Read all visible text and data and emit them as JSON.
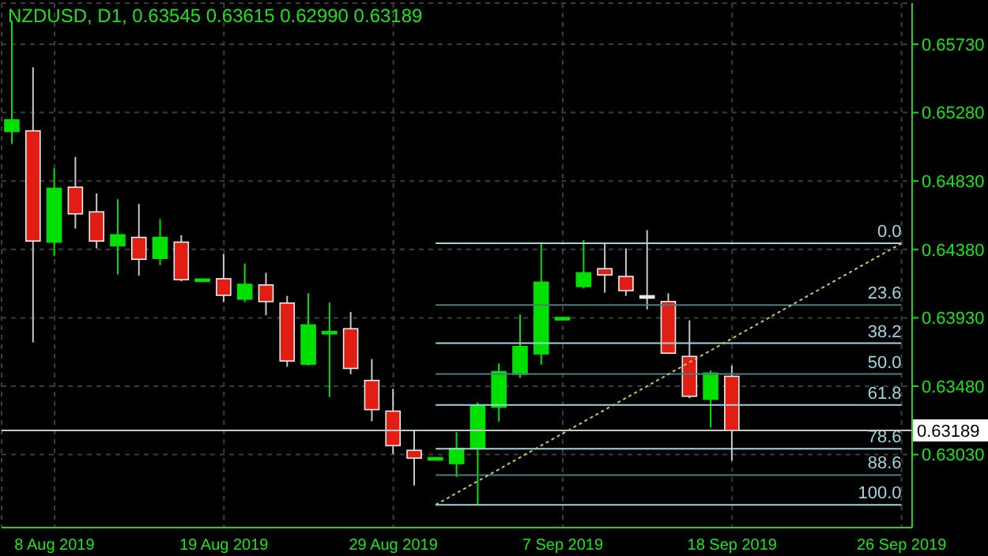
{
  "chart_data": {
    "type": "candlestick",
    "title": "NZDUSD, D1, 0.63545 0.63615 0.62990 0.63189",
    "categories": [
      null,
      null,
      "8 Aug 2019",
      null,
      null,
      null,
      null,
      null,
      null,
      null,
      "19 Aug 2019",
      null,
      null,
      null,
      null,
      null,
      null,
      null,
      "29 Aug 2019",
      null,
      null,
      null,
      null,
      null,
      null,
      null,
      "7 Sep 2019",
      null,
      null,
      null,
      null,
      null,
      null,
      null,
      "18 Sep 2019",
      null,
      null,
      null,
      null,
      null,
      null,
      null,
      "26 Sep 2019"
    ],
    "ohlc": [
      [
        0.65156,
        0.65885,
        0.65074,
        0.65232
      ],
      [
        0.6516,
        0.65578,
        0.63769,
        0.64435
      ],
      [
        0.64428,
        0.64913,
        0.64336,
        0.64782
      ],
      [
        0.64789,
        0.64988,
        0.64517,
        0.64614
      ],
      [
        0.64627,
        0.64748,
        0.64387,
        0.64435
      ],
      [
        0.64404,
        0.6471,
        0.64215,
        0.64476
      ],
      [
        0.64459,
        0.64679,
        0.64208,
        0.64315
      ],
      [
        0.64321,
        0.64579,
        0.64277,
        0.64459
      ],
      [
        0.64428,
        0.64473,
        0.64171,
        0.64181
      ],
      [
        0.64175,
        0.64185,
        0.64175,
        0.64185
      ],
      [
        0.64187,
        0.64349,
        0.64033,
        0.64078
      ],
      [
        0.64053,
        0.64287,
        0.64033,
        0.6415
      ],
      [
        0.64146,
        0.64226,
        0.63947,
        0.64037
      ],
      [
        0.64027,
        0.64074,
        0.63608,
        0.63646
      ],
      [
        0.63625,
        0.64092,
        0.63615,
        0.63883
      ],
      [
        0.6383,
        0.6403,
        0.63409,
        0.6384
      ],
      [
        0.63858,
        0.63968,
        0.63559,
        0.63597
      ],
      [
        0.63518,
        0.63659,
        0.6325,
        0.63326
      ],
      [
        0.63316,
        0.63463,
        0.63034,
        0.63089
      ],
      [
        0.63058,
        0.63195,
        0.62827,
        0.63007
      ],
      [
        0.63002,
        0.6301,
        0.63002,
        0.6301
      ],
      [
        0.62971,
        0.63178,
        0.62883,
        0.63071
      ],
      [
        0.63074,
        0.63373,
        0.627,
        0.6335
      ],
      [
        0.63342,
        0.63631,
        0.63247,
        0.63576
      ],
      [
        0.63559,
        0.63951,
        0.63535,
        0.63741
      ],
      [
        0.63693,
        0.64428,
        0.63621,
        0.64164
      ],
      [
        0.6392,
        0.63932,
        0.6392,
        0.63932
      ],
      [
        0.64136,
        0.64442,
        0.64123,
        0.64226
      ],
      [
        0.64253,
        0.64421,
        0.64095,
        0.64212
      ],
      [
        0.64202,
        0.64387,
        0.64074,
        0.64109
      ],
      [
        0.64075,
        0.64507,
        0.63985,
        0.6406
      ],
      [
        0.64037,
        0.64092,
        0.63697,
        0.63697
      ],
      [
        0.63676,
        0.63913,
        0.63401,
        0.63414
      ],
      [
        0.63394,
        0.63583,
        0.63208,
        0.63566
      ],
      [
        0.63545,
        0.63615,
        0.6299,
        0.63189
      ],
      null,
      null,
      null,
      null,
      null,
      null,
      null,
      null
    ],
    "colors": [
      "#00e000",
      "#e01e14",
      "#00e000",
      "#e01e14",
      "#e01e14",
      "#00e000",
      "#e01e14",
      "#00e000",
      "#e01e14",
      "#00e000",
      "#e01e14",
      "#00e000",
      "#e01e14",
      "#e01e14",
      "#00e000",
      "#00e000",
      "#e01e14",
      "#e01e14",
      "#e01e14",
      "#e01e14",
      "#00e000",
      "#00e000",
      "#00e000",
      "#00e000",
      "#00e000",
      "#00e000",
      "#00e000",
      "#00e000",
      "#e01e14",
      "#e01e14",
      "#e0e0e0",
      "#e01e14",
      "#e01e14",
      "#00e000",
      "#e01e14",
      null,
      null,
      null,
      null,
      null,
      null,
      null,
      null
    ],
    "series": [
      {
        "type": "line",
        "color": "#c8c864",
        "line_style": "dotted",
        "values": [
          null,
          null,
          null,
          null,
          null,
          null,
          null,
          null,
          null,
          null,
          null,
          null,
          null,
          null,
          null,
          null,
          null,
          null,
          null,
          null,
          0.627,
          null,
          null,
          null,
          null,
          null,
          null,
          null,
          null,
          null,
          null,
          null,
          null,
          null,
          null,
          null,
          null,
          null,
          null,
          null,
          null,
          null,
          0.6442
        ]
      }
    ],
    "ylim": [
      0.6255,
      0.66
    ],
    "yticks": [
      {
        "value": 0.6303,
        "label": "0.63030"
      },
      {
        "value": 0.6348,
        "label": "0.63480"
      },
      {
        "value": 0.6393,
        "label": "0.63930"
      },
      {
        "value": 0.6438,
        "label": "0.64380"
      },
      {
        "value": 0.6483,
        "label": "0.64830"
      },
      {
        "value": 0.6528,
        "label": "0.65280"
      },
      {
        "value": 0.6573,
        "label": "0.65730"
      }
    ],
    "ref_lines": [
      {
        "axis": "y",
        "value": 0.6442,
        "color": "#a0d4dc"
      },
      {
        "axis": "y",
        "value": 0.64014,
        "color": "#4e7c80"
      },
      {
        "axis": "y",
        "value": 0.63763,
        "color": "#a0d4dc"
      },
      {
        "axis": "y",
        "value": 0.6356,
        "color": "#4e7c80"
      },
      {
        "axis": "y",
        "value": 0.63357,
        "color": "#a0d4dc"
      },
      {
        "axis": "y",
        "value": 0.63068,
        "color": "#a0d4dc"
      },
      {
        "axis": "y",
        "value": 0.62896,
        "color": "#4e7c80"
      },
      {
        "axis": "y",
        "value": 0.627,
        "color": "#a0d4dc"
      },
      {
        "axis": "y",
        "value": 0.63189,
        "label": "0.63189",
        "color": "#c8c8c8"
      }
    ],
    "annotations": [
      {
        "text": "0.0",
        "y": 0.6442
      },
      {
        "text": "23.6",
        "y": 0.64014
      },
      {
        "text": "38.2",
        "y": 0.63763
      },
      {
        "text": "50.0",
        "y": 0.6356
      },
      {
        "text": "61.8",
        "y": 0.63357
      },
      {
        "text": "78.6",
        "y": 0.63068
      },
      {
        "text": "88.6",
        "y": 0.62896
      },
      {
        "text": "100.0",
        "y": 0.627
      }
    ],
    "grid": true
  }
}
